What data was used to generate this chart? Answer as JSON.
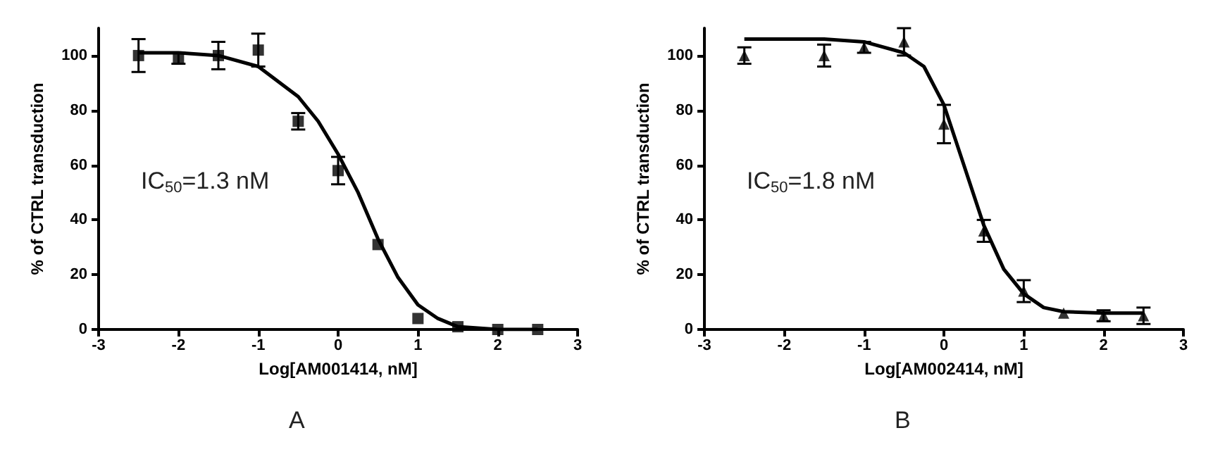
{
  "chart_data": [
    {
      "type": "scatter",
      "xlabel": "Log[AM001414, nM]",
      "ylabel": "% of CTRL transduction",
      "annotations": [
        "IC$_{50}$=1.3 nM",
        "A"
      ],
      "xlim": [
        -3,
        3
      ],
      "xticks": [
        -3,
        -2,
        -1,
        0,
        1,
        2,
        3
      ],
      "ylim": [
        0,
        110
      ],
      "yticks": [
        0,
        20,
        40,
        60,
        80,
        100
      ],
      "series": [
        {
          "marker": "square",
          "color": "#000000",
          "x": [
            -2.5,
            -2,
            -1.5,
            -1,
            -0.5,
            0,
            0.5,
            1,
            1.5,
            2,
            2.5
          ],
          "values": [
            100,
            99,
            100,
            102,
            76,
            58,
            31,
            4,
            1,
            0,
            0
          ],
          "errors": [
            6,
            2,
            5,
            6,
            3,
            5,
            null,
            null,
            null,
            null,
            null
          ]
        },
        {
          "type": "line",
          "marker": "none",
          "color": "#000000",
          "x": [
            -2.5,
            -2,
            -1.5,
            -1,
            -0.5,
            -0.25,
            0,
            0.25,
            0.5,
            0.75,
            1,
            1.25,
            1.5,
            2,
            2.5
          ],
          "values": [
            101,
            101,
            100,
            96,
            85,
            76,
            64,
            50,
            33,
            19,
            9,
            4,
            1,
            0,
            0
          ]
        }
      ]
    },
    {
      "type": "scatter",
      "xlabel": "Log[AM002414, nM]",
      "ylabel": "% of CTRL transduction",
      "annotations": [
        "IC$_{50}$=1.8 nM",
        "B"
      ],
      "xlim": [
        -3,
        3
      ],
      "xticks": [
        -3,
        -2,
        -1,
        0,
        1,
        2,
        3
      ],
      "ylim": [
        0,
        110
      ],
      "yticks": [
        0,
        20,
        40,
        60,
        80,
        100
      ],
      "series": [
        {
          "marker": "triangle",
          "color": "#000000",
          "x": [
            -2.5,
            -1.5,
            -1,
            -0.5,
            0,
            0.5,
            1,
            1.5,
            2,
            2.5
          ],
          "values": [
            100,
            100,
            103,
            105,
            75,
            36,
            14,
            6,
            5,
            5
          ],
          "errors": [
            3,
            4,
            2,
            5,
            7,
            4,
            4,
            null,
            2,
            3
          ]
        },
        {
          "type": "line",
          "marker": "none",
          "color": "#000000",
          "x": [
            -2.5,
            -1.5,
            -1,
            -0.5,
            -0.25,
            0,
            0.25,
            0.5,
            0.75,
            1,
            1.25,
            1.5,
            2,
            2.5
          ],
          "values": [
            106,
            106,
            105,
            101,
            96,
            82,
            60,
            38,
            22,
            13,
            8,
            6.5,
            6,
            6
          ]
        }
      ]
    }
  ]
}
